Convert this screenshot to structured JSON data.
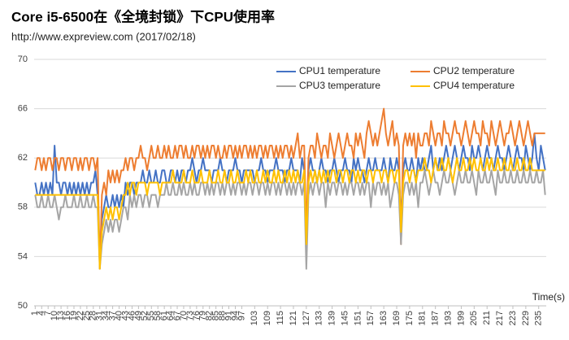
{
  "chart_data": {
    "type": "line",
    "title": "Core i5-6500在《全境封锁》下CPU使用率",
    "subtitle": "http://www.expreview.com (2017/02/18)",
    "x_label": "Time(s)",
    "x": [
      1,
      2,
      3,
      4,
      5,
      6,
      7,
      8,
      9,
      10,
      11,
      12,
      13,
      14,
      15,
      16,
      17,
      18,
      19,
      20,
      21,
      22,
      23,
      24,
      25,
      26,
      27,
      28,
      29,
      30,
      31,
      32,
      33,
      34,
      35,
      36,
      37,
      38,
      39,
      40,
      41,
      42,
      43,
      44,
      45,
      46,
      47,
      48,
      49,
      50,
      51,
      52,
      53,
      54,
      55,
      56,
      57,
      58,
      59,
      60,
      61,
      62,
      63,
      64,
      65,
      66,
      67,
      68,
      69,
      70,
      71,
      72,
      73,
      74,
      75,
      76,
      77,
      78,
      79,
      80,
      81,
      82,
      83,
      84,
      85,
      86,
      87,
      88,
      89,
      90,
      91,
      92,
      93,
      94,
      95,
      96,
      97,
      98,
      99,
      100,
      101,
      102,
      103,
      104,
      105,
      106,
      107,
      108,
      109,
      110,
      111,
      112,
      113,
      114,
      115,
      116,
      117,
      118,
      119,
      120,
      121,
      122,
      123,
      124,
      125,
      126,
      127,
      128,
      129,
      130,
      131,
      132,
      133,
      134,
      135,
      136,
      137,
      138,
      139,
      140,
      141,
      142,
      143,
      144,
      145,
      146,
      147,
      148,
      149,
      150,
      151,
      152,
      153,
      154,
      155,
      156,
      157,
      158,
      159,
      160,
      161,
      162,
      163,
      164,
      165,
      166,
      167,
      168,
      169,
      170,
      171,
      172,
      173,
      174,
      175,
      176,
      177,
      178,
      179,
      180,
      181,
      182,
      183,
      184,
      185,
      186,
      187,
      188,
      189,
      190,
      191,
      192,
      193,
      194,
      195,
      196,
      197,
      198,
      199,
      200,
      201,
      202,
      203,
      204,
      205,
      206,
      207,
      208,
      209,
      210,
      211,
      212,
      213,
      214,
      215,
      216,
      217,
      218,
      219,
      220,
      221,
      222,
      223,
      224,
      225,
      226,
      227,
      228,
      229,
      230,
      231,
      232,
      233,
      234,
      235,
      236,
      237,
      238
    ],
    "xlim": [
      0.5,
      238.5
    ],
    "xticks": [
      1,
      4,
      7,
      10,
      13,
      16,
      19,
      22,
      25,
      28,
      31,
      34,
      37,
      40,
      43,
      46,
      49,
      52,
      55,
      58,
      61,
      64,
      67,
      70,
      73,
      76,
      79,
      82,
      85,
      88,
      91,
      94,
      97,
      103,
      109,
      115,
      121,
      127,
      133,
      139,
      145,
      151,
      157,
      163,
      169,
      175,
      181,
      187,
      193,
      199,
      205,
      211,
      217,
      223,
      229,
      235
    ],
    "ylim": [
      50,
      70
    ],
    "yticks": [
      50,
      54,
      58,
      62,
      66,
      70
    ],
    "grid": true,
    "legend": "top",
    "series": [
      {
        "name": "CPU1 temperature",
        "color": "#4472c4",
        "values": [
          60,
          59,
          59,
          60,
          59,
          60,
          59,
          60,
          59,
          63,
          60,
          60,
          59,
          60,
          60,
          59,
          60,
          59,
          60,
          59,
          60,
          59,
          60,
          59,
          60,
          59,
          60,
          60,
          61,
          59,
          54,
          57,
          58,
          59,
          58,
          58,
          59,
          58,
          59,
          58,
          59,
          58,
          60,
          59,
          60,
          60,
          59,
          60,
          60,
          60,
          61,
          60,
          60,
          61,
          60,
          60,
          61,
          60,
          60,
          61,
          61,
          60,
          60,
          61,
          61,
          60,
          61,
          60,
          61,
          61,
          60,
          61,
          61,
          62,
          61,
          60,
          61,
          61,
          62,
          61,
          61,
          61,
          60,
          61,
          61,
          61,
          62,
          61,
          61,
          60,
          61,
          61,
          61,
          62,
          61,
          61,
          60,
          61,
          61,
          61,
          61,
          61,
          60,
          61,
          61,
          62,
          61,
          61,
          60,
          61,
          61,
          61,
          62,
          61,
          61,
          61,
          60,
          61,
          61,
          62,
          61,
          61,
          61,
          60,
          62,
          61,
          55,
          61,
          62,
          61,
          61,
          60,
          61,
          62,
          61,
          61,
          60,
          61,
          61,
          62,
          61,
          60,
          61,
          61,
          62,
          61,
          61,
          60,
          62,
          61,
          62,
          61,
          61,
          60,
          61,
          62,
          61,
          61,
          62,
          61,
          61,
          61,
          62,
          61,
          60,
          62,
          61,
          61,
          62,
          61,
          57,
          61,
          62,
          61,
          61,
          62,
          61,
          60,
          62,
          61,
          62,
          61,
          61,
          62,
          63,
          61,
          62,
          61,
          62,
          61,
          62,
          63,
          62,
          61,
          62,
          63,
          62,
          61,
          62,
          63,
          62,
          62,
          61,
          63,
          62,
          62,
          63,
          62,
          61,
          62,
          63,
          62,
          62,
          61,
          62,
          63,
          62,
          62,
          61,
          62,
          63,
          62,
          61,
          62,
          63,
          62,
          62,
          61,
          63,
          62,
          61,
          62,
          64,
          62,
          61,
          63,
          62,
          61
        ]
      },
      {
        "name": "CPU2 temperature",
        "color": "#ed7d31",
        "values": [
          61,
          62,
          62,
          61,
          62,
          61,
          62,
          62,
          61,
          62,
          62,
          61,
          62,
          62,
          61,
          62,
          62,
          61,
          62,
          62,
          61,
          62,
          61,
          62,
          62,
          61,
          62,
          62,
          61,
          62,
          53,
          59,
          60,
          59,
          61,
          60,
          61,
          60,
          61,
          60,
          61,
          61,
          62,
          61,
          62,
          62,
          61,
          62,
          62,
          63,
          62,
          62,
          61,
          62,
          63,
          62,
          62,
          63,
          62,
          62,
          63,
          62,
          63,
          62,
          62,
          63,
          62,
          63,
          63,
          62,
          63,
          62,
          62,
          63,
          62,
          63,
          63,
          62,
          63,
          62,
          63,
          62,
          63,
          63,
          62,
          63,
          62,
          62,
          63,
          62,
          63,
          63,
          62,
          63,
          62,
          63,
          62,
          63,
          63,
          62,
          63,
          62,
          63,
          62,
          63,
          63,
          62,
          63,
          62,
          63,
          63,
          62,
          63,
          62,
          63,
          62,
          63,
          63,
          62,
          63,
          62,
          63,
          64,
          62,
          63,
          63,
          56,
          62,
          63,
          63,
          62,
          64,
          63,
          62,
          63,
          63,
          62,
          64,
          63,
          62,
          63,
          64,
          63,
          62,
          63,
          64,
          63,
          63,
          62,
          64,
          63,
          64,
          63,
          62,
          64,
          65,
          64,
          63,
          64,
          63,
          64,
          65,
          66,
          64,
          63,
          64,
          65,
          63,
          64,
          63,
          55,
          63,
          64,
          63,
          64,
          63,
          64,
          62,
          64,
          63,
          63,
          64,
          64,
          63,
          65,
          64,
          63,
          64,
          64,
          63,
          65,
          64,
          64,
          63,
          64,
          65,
          64,
          64,
          63,
          64,
          65,
          64,
          63,
          64,
          65,
          64,
          64,
          63,
          65,
          64,
          64,
          63,
          65,
          64,
          63,
          64,
          65,
          64,
          63,
          64,
          64,
          65,
          64,
          63,
          64,
          65,
          64,
          63,
          64,
          65,
          64,
          63,
          64,
          64,
          64,
          64,
          64,
          64
        ]
      },
      {
        "name": "CPU3 temperature",
        "color": "#a5a5a5",
        "values": [
          59,
          58,
          58,
          59,
          58,
          58,
          59,
          58,
          58,
          59,
          58,
          57,
          58,
          58,
          59,
          58,
          58,
          58,
          59,
          58,
          58,
          59,
          58,
          58,
          59,
          58,
          58,
          59,
          58,
          58,
          53,
          55,
          56,
          57,
          56,
          57,
          56,
          57,
          57,
          56,
          57,
          58,
          58,
          57,
          59,
          58,
          59,
          58,
          59,
          59,
          58,
          59,
          59,
          58,
          59,
          59,
          59,
          58,
          59,
          59,
          59,
          60,
          59,
          59,
          60,
          59,
          59,
          60,
          59,
          60,
          59,
          59,
          60,
          59,
          60,
          59,
          59,
          60,
          60,
          59,
          60,
          59,
          60,
          59,
          60,
          60,
          59,
          60,
          59,
          60,
          60,
          59,
          60,
          59,
          60,
          60,
          59,
          60,
          59,
          60,
          60,
          59,
          60,
          60,
          59,
          60,
          60,
          59,
          60,
          59,
          60,
          60,
          59,
          60,
          59,
          60,
          60,
          59,
          60,
          59,
          60,
          59,
          60,
          60,
          59,
          60,
          53,
          59,
          60,
          59,
          60,
          60,
          59,
          60,
          60,
          58,
          60,
          59,
          60,
          60,
          59,
          60,
          60,
          59,
          60,
          59,
          60,
          60,
          59,
          60,
          60,
          59,
          60,
          59,
          60,
          60,
          58,
          60,
          59,
          60,
          60,
          59,
          60,
          59,
          60,
          58,
          59,
          60,
          60,
          59,
          55,
          59,
          60,
          60,
          59,
          60,
          59,
          60,
          58,
          60,
          60,
          61,
          60,
          59,
          60,
          61,
          60,
          60,
          59,
          60,
          61,
          60,
          60,
          61,
          60,
          59,
          60,
          61,
          60,
          60,
          61,
          60,
          60,
          61,
          60,
          59,
          61,
          60,
          60,
          61,
          60,
          60,
          61,
          60,
          59,
          61,
          60,
          60,
          61,
          60,
          60,
          61,
          60,
          60,
          61,
          60,
          60,
          61,
          60,
          60,
          61,
          60,
          60,
          61,
          60,
          60,
          61,
          59
        ]
      },
      {
        "name": "CPU4 temperature",
        "color": "#ffc000",
        "values": [
          59,
          59,
          59,
          59,
          59,
          59,
          59,
          59,
          59,
          59,
          59,
          59,
          59,
          59,
          59,
          59,
          59,
          59,
          59,
          59,
          59,
          59,
          59,
          59,
          59,
          59,
          59,
          59,
          59,
          59,
          53,
          56,
          57,
          58,
          57,
          58,
          57,
          58,
          58,
          57,
          58,
          59,
          59,
          60,
          59,
          60,
          60,
          59,
          60,
          60,
          60,
          60,
          59,
          60,
          60,
          60,
          60,
          60,
          59,
          60,
          60,
          60,
          60,
          60,
          61,
          60,
          60,
          60,
          60,
          61,
          60,
          60,
          60,
          61,
          60,
          60,
          60,
          61,
          60,
          60,
          60,
          61,
          60,
          60,
          60,
          61,
          60,
          60,
          61,
          60,
          60,
          61,
          60,
          60,
          61,
          60,
          60,
          60,
          61,
          60,
          61,
          60,
          60,
          61,
          60,
          60,
          61,
          60,
          61,
          60,
          60,
          61,
          60,
          61,
          60,
          60,
          61,
          60,
          61,
          60,
          61,
          60,
          61,
          60,
          60,
          61,
          55,
          60,
          61,
          60,
          61,
          60,
          61,
          60,
          61,
          60,
          61,
          60,
          61,
          61,
          60,
          61,
          61,
          60,
          61,
          61,
          60,
          61,
          61,
          60,
          61,
          60,
          61,
          61,
          60,
          61,
          61,
          60,
          61,
          61,
          61,
          60,
          61,
          61,
          60,
          61,
          61,
          60,
          61,
          61,
          56,
          60,
          61,
          61,
          60,
          61,
          61,
          60,
          61,
          61,
          61,
          62,
          61,
          61,
          60,
          61,
          62,
          61,
          61,
          62,
          61,
          61,
          62,
          61,
          60,
          61,
          62,
          61,
          61,
          62,
          61,
          61,
          62,
          61,
          62,
          61,
          61,
          62,
          61,
          61,
          62,
          61,
          62,
          61,
          61,
          62,
          61,
          61,
          62,
          61,
          61,
          62,
          61,
          61,
          62,
          61,
          61,
          62,
          61,
          61,
          62,
          61,
          61,
          61,
          61,
          61,
          61,
          61
        ]
      }
    ]
  }
}
